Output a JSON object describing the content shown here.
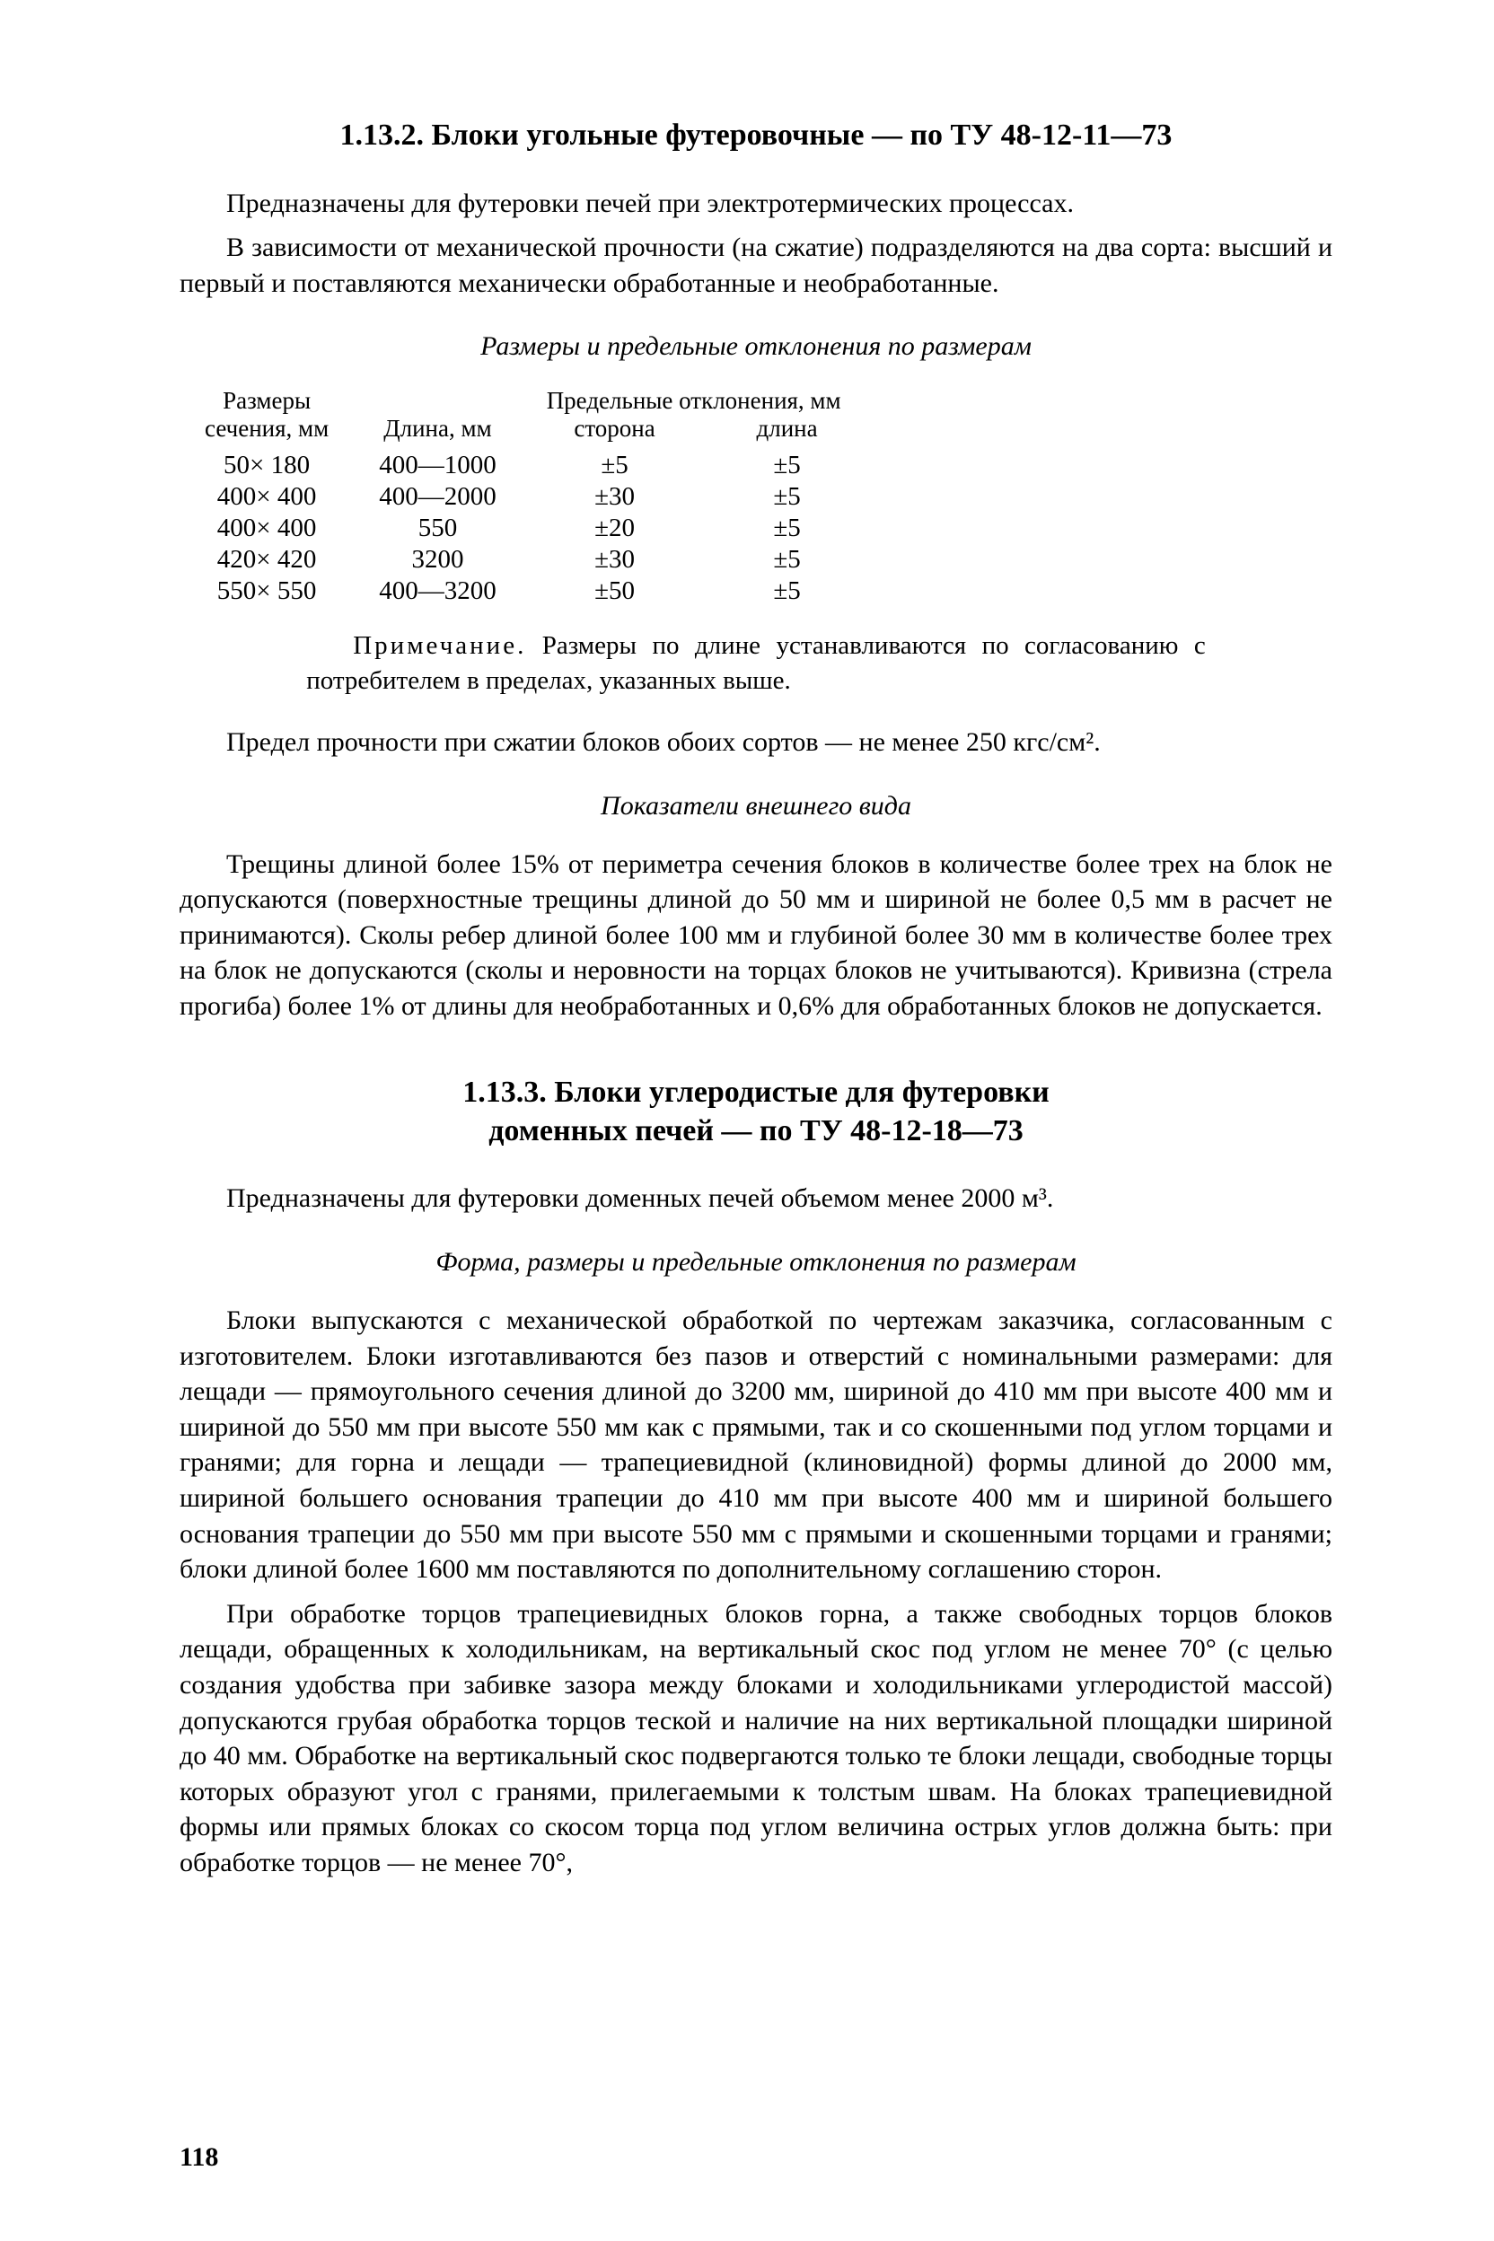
{
  "section1": {
    "heading": "1.13.2. Блоки угольные футеровочные — по ТУ 48-12-11—73",
    "p1": "Предназначены для футеровки печей при электротермических процессах.",
    "p2": "В зависимости от механической прочности (на сжатие) подразделяются на два сорта: высший и первый и поставляются механически обработанные и необработанные.",
    "table_title": "Размеры и предельные отклонения по размерам",
    "headers": {
      "col1_l1": "Размеры",
      "col1_l2": "сечения, мм",
      "col2": "Длина, мм",
      "col34_top": "Предельные отклонения, мм",
      "col3": "сторона",
      "col4": "длина"
    },
    "rows": [
      {
        "size": "50× 180",
        "len": "400—1000",
        "side": "±5",
        "dlen": "±5"
      },
      {
        "size": "400× 400",
        "len": "400—2000",
        "side": "±30",
        "dlen": "±5"
      },
      {
        "size": "400× 400",
        "len": "550",
        "side": "±20",
        "dlen": "±5"
      },
      {
        "size": "420× 420",
        "len": "3200",
        "side": "±30",
        "dlen": "±5"
      },
      {
        "size": "550× 550",
        "len": "400—3200",
        "side": "±50",
        "dlen": "±5"
      }
    ],
    "note_label": "Примечание.",
    "note_text": " Размеры по длине устанавливаются по согласованию с потребителем в пределах, указанных выше.",
    "strength": "Предел прочности при сжатии блоков обоих сортов — не менее 250 кгс/см².",
    "appearance_title": "Показатели внешнего вида",
    "appearance_text": "Трещины длиной более 15% от периметра сечения блоков в количестве более трех на блок не допускаются (поверхностные трещины длиной до 50 мм и шириной не более 0,5 мм в расчет не принимаются). Сколы ребер длиной более 100 мм и глубиной более 30 мм в количестве более трех на блок не допускаются (сколы и неровности на торцах блоков не учитываются). Кривизна (стрела прогиба) более 1% от длины для необработанных и 0,6% для обработанных блоков не допускается."
  },
  "section2": {
    "heading_l1": "1.13.3. Блоки углеродистые для футеровки",
    "heading_l2": "доменных печей — по ТУ 48-12-18—73",
    "p1": "Предназначены для футеровки доменных печей объемом менее 2000 м³.",
    "subtitle": "Форма, размеры и предельные отклонения по размерам",
    "p2": "Блоки выпускаются с механической обработкой по чертежам заказчика, согласованным с изготовителем. Блоки изготавливаются без пазов и отверстий с номинальными размерами: для лещади — прямоугольного сечения длиной до 3200 мм, шириной до 410 мм при высоте 400 мм и шириной до 550 мм при высоте 550 мм как с прямыми, так и со скошенными под углом торцами и гранями; для горна и лещади — трапециевидной (клиновидной) формы длиной до 2000 мм, шириной большего основания трапеции до 410 мм при высоте 400 мм и шириной большего основания трапеции до 550 мм при высоте 550 мм с прямыми и скошенными торцами и гранями; блоки длиной более 1600 мм поставляются по дополнительному соглашению сторон.",
    "p3": "При обработке торцов трапециевидных блоков горна, а также свободных торцов блоков лещади, обращенных к холодильникам, на вертикальный скос под углом не менее 70° (с целью создания удобства при забивке зазора между блоками и холодильниками углеродистой массой) допускаются грубая обработка торцов теской и наличие на них вертикальной площадки шириной до 40 мм. Обработке на вертикальный скос подвергаются только те блоки лещади, свободные торцы которых образуют угол с гранями, прилегаемыми к толстым швам. На блоках трапециевидной формы или прямых блоках со скосом торца под углом величина острых углов должна быть: при обработке торцов — не менее 70°,"
  },
  "page_number": "118"
}
